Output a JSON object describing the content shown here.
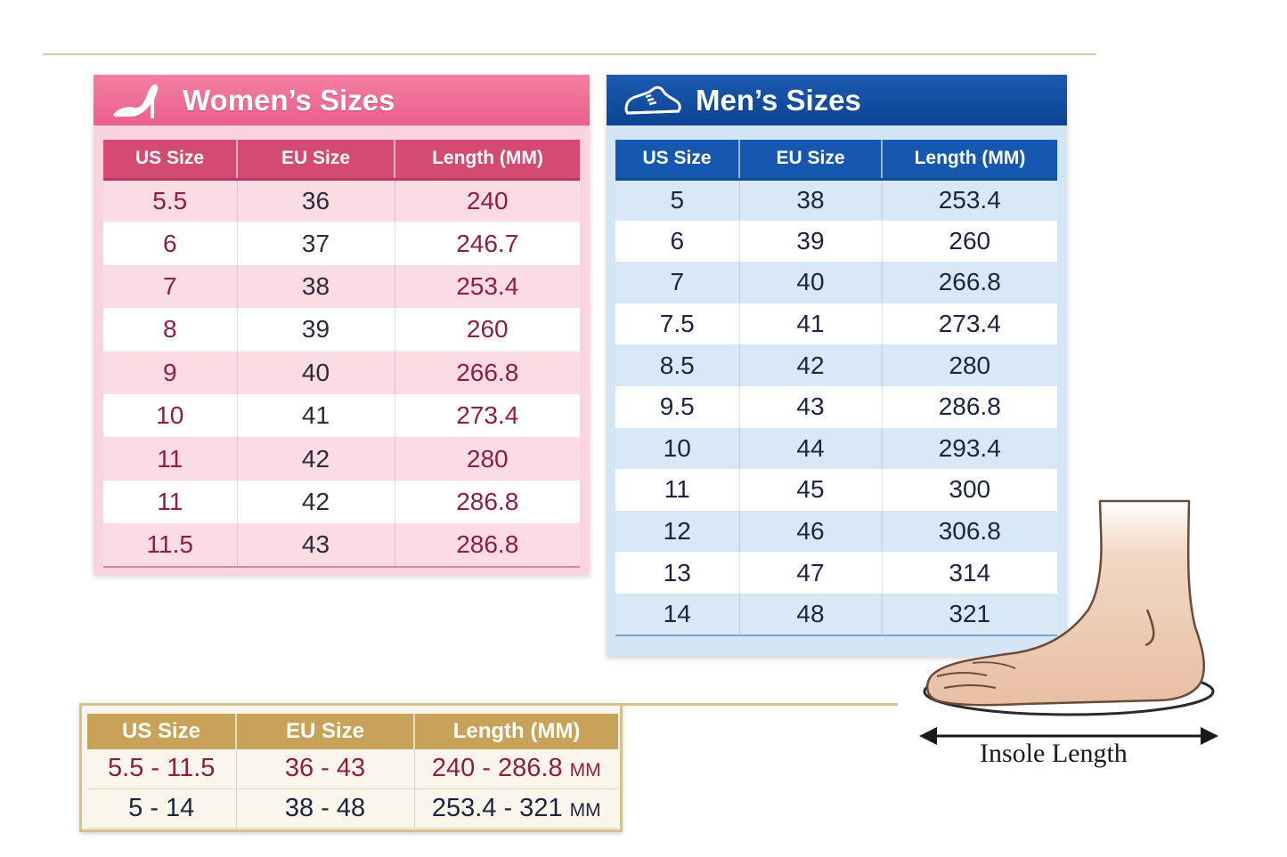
{
  "women": {
    "title": "Women’s Sizes",
    "icon": "high-heel-icon",
    "headers": [
      "US Size",
      "EU Size",
      "Length (MM)"
    ],
    "rows": [
      [
        "5.5",
        "36",
        "240"
      ],
      [
        "6",
        "37",
        "246.7"
      ],
      [
        "7",
        "38",
        "253.4"
      ],
      [
        "8",
        "39",
        "260"
      ],
      [
        "9",
        "40",
        "266.8"
      ],
      [
        "10",
        "41",
        "273.4"
      ],
      [
        "11",
        "42",
        "280"
      ],
      [
        "11",
        "42",
        "286.8"
      ],
      [
        "11.5",
        "43",
        "286.8"
      ]
    ]
  },
  "men": {
    "title": "Men’s Sizes",
    "icon": "sneaker-icon",
    "headers": [
      "US Size",
      "EU Size",
      "Length (MM)"
    ],
    "rows": [
      [
        "5",
        "38",
        "253.4"
      ],
      [
        "6",
        "39",
        "260"
      ],
      [
        "7",
        "40",
        "266.8"
      ],
      [
        "7.5",
        "41",
        "273.4"
      ],
      [
        "8.5",
        "42",
        "280"
      ],
      [
        "9.5",
        "43",
        "286.8"
      ],
      [
        "10",
        "44",
        "293.4"
      ],
      [
        "11",
        "45",
        "300"
      ],
      [
        "12",
        "46",
        "306.8"
      ],
      [
        "13",
        "47",
        "314"
      ],
      [
        "14",
        "48",
        "321"
      ]
    ]
  },
  "summary": {
    "headers": [
      "US Size",
      "EU Size",
      "Length (MM)"
    ],
    "rows": [
      {
        "us": "5.5 - 11.5",
        "eu": "36 - 43",
        "length": "240 - 286.8",
        "unit": "MM"
      },
      {
        "us": "5 - 14",
        "eu": "38 - 48",
        "length": "253.4 - 321",
        "unit": "MM"
      }
    ]
  },
  "diagram": {
    "label": "Insole Length",
    "icon": "foot-illustration"
  },
  "colors": {
    "women_header": "#ec5f8c",
    "women_accent": "#d34a72",
    "women_text": "#8e1f42",
    "men_header": "#0c4494",
    "men_accent": "#1658b0",
    "summary_header": "#c9a259",
    "summary_border": "#d8c08d"
  }
}
